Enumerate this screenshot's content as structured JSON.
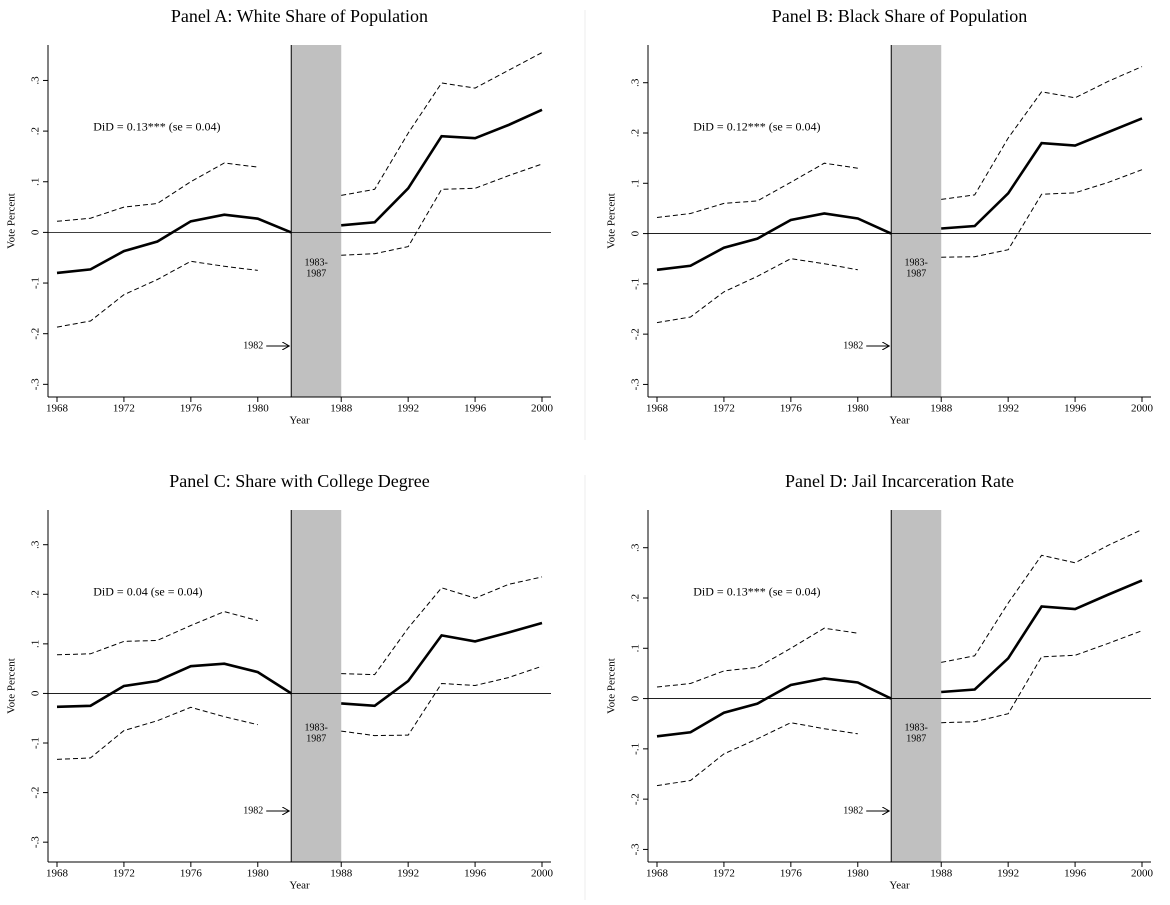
{
  "chart_data": [
    {
      "type": "line",
      "title": "Panel A: White Share of Population",
      "x_label": "Year",
      "y_label": "Vote Percent",
      "annotation": "DiD = 0.13*** (se = 0.04)",
      "band": {
        "from": 1982,
        "to": 1988,
        "label": [
          "1983-",
          "1987"
        ],
        "color": "#c0c0c0"
      },
      "arrow_label": "1982",
      "x": [
        1968,
        1970,
        1972,
        1974,
        1976,
        1978,
        1980,
        1982,
        1988,
        1990,
        1992,
        1994,
        1996,
        1998,
        2000
      ],
      "series": [
        {
          "color": "#000000",
          "style": "solid",
          "values": [
            -0.08,
            -0.073,
            -0.037,
            -0.018,
            0.022,
            0.035,
            0.027,
            0,
            0.014,
            0.02,
            0.087,
            0.19,
            0.186,
            0.212,
            0.242
          ]
        },
        {
          "color": "#000000",
          "style": "dashed",
          "values": [
            0.022,
            0.028,
            0.05,
            0.057,
            0.1,
            0.137,
            0.129,
            null,
            0.073,
            0.085,
            0.196,
            0.295,
            0.285,
            0.32,
            0.355
          ]
        },
        {
          "color": "#000000",
          "style": "dashed",
          "values": [
            -0.187,
            -0.175,
            -0.123,
            -0.093,
            -0.057,
            -0.067,
            -0.075,
            null,
            -0.045,
            -0.042,
            -0.028,
            0.085,
            0.087,
            0.112,
            0.135
          ]
        }
      ],
      "xlim": [
        1968,
        2000
      ],
      "xticks": [
        1968,
        1972,
        1976,
        1980,
        1988,
        1992,
        1996,
        2000
      ],
      "ylim": [
        -0.325,
        0.37
      ],
      "yline": 0,
      "yticks": [
        {
          "value": -0.3,
          "label": "-.3"
        },
        {
          "value": -0.2,
          "label": "-.2"
        },
        {
          "value": -0.1,
          "label": "-.1"
        },
        0,
        {
          "value": 0.1,
          "label": ".1"
        },
        {
          "value": 0.2,
          "label": ".2"
        },
        {
          "value": 0.3,
          "label": ".3"
        }
      ]
    },
    {
      "type": "line",
      "title": "Panel B: Black Share of Population",
      "x_label": "Year",
      "y_label": "Vote Percent",
      "annotation": "DiD = 0.12*** (se = 0.04)",
      "band": {
        "from": 1982,
        "to": 1988,
        "label": [
          "1983-",
          "1987"
        ],
        "color": "#c0c0c0"
      },
      "arrow_label": "1982",
      "x": [
        1968,
        1970,
        1972,
        1974,
        1976,
        1978,
        1980,
        1982,
        1988,
        1990,
        1992,
        1994,
        1996,
        1998,
        2000
      ],
      "series": [
        {
          "color": "#000000",
          "style": "solid",
          "values": [
            -0.072,
            -0.064,
            -0.028,
            -0.01,
            0.027,
            0.04,
            0.03,
            0,
            0.01,
            0.015,
            0.08,
            0.18,
            0.175,
            0.202,
            0.229
          ]
        },
        {
          "color": "#000000",
          "style": "dashed",
          "values": [
            0.032,
            0.04,
            0.06,
            0.065,
            0.102,
            0.14,
            0.13,
            null,
            0.068,
            0.077,
            0.19,
            0.282,
            0.27,
            0.303,
            0.332
          ]
        },
        {
          "color": "#000000",
          "style": "dashed",
          "values": [
            -0.177,
            -0.166,
            -0.116,
            -0.085,
            -0.05,
            -0.06,
            -0.072,
            null,
            -0.047,
            -0.046,
            -0.032,
            0.078,
            0.081,
            0.102,
            0.127
          ]
        }
      ],
      "xlim": [
        1968,
        2000
      ],
      "xticks": [
        1968,
        1972,
        1976,
        1980,
        1988,
        1992,
        1996,
        2000
      ],
      "ylim": [
        -0.325,
        0.375
      ],
      "yline": 0,
      "yticks": [
        {
          "value": -0.3,
          "label": "-.3"
        },
        {
          "value": -0.2,
          "label": "-.2"
        },
        {
          "value": -0.1,
          "label": "-.1"
        },
        0,
        {
          "value": 0.1,
          "label": ".1"
        },
        {
          "value": 0.2,
          "label": ".2"
        },
        {
          "value": 0.3,
          "label": ".3"
        }
      ]
    },
    {
      "type": "line",
      "title": "Panel C: Share with College Degree",
      "x_label": "Year",
      "y_label": "Vote Percent",
      "annotation": "DiD = 0.04 (se = 0.04)",
      "band": {
        "from": 1982,
        "to": 1988,
        "label": [
          "1983-",
          "1987"
        ],
        "color": "#c0c0c0"
      },
      "arrow_label": "1982",
      "x": [
        1968,
        1970,
        1972,
        1974,
        1976,
        1978,
        1980,
        1982,
        1988,
        1990,
        1992,
        1994,
        1996,
        1998,
        2000
      ],
      "series": [
        {
          "color": "#000000",
          "style": "solid",
          "values": [
            -0.027,
            -0.025,
            0.015,
            0.025,
            0.055,
            0.06,
            0.043,
            0,
            -0.02,
            -0.025,
            0.025,
            0.117,
            0.105,
            0.123,
            0.142
          ]
        },
        {
          "color": "#000000",
          "style": "dashed",
          "values": [
            0.078,
            0.08,
            0.105,
            0.107,
            0.137,
            0.165,
            0.147,
            null,
            0.04,
            0.038,
            0.132,
            0.213,
            0.192,
            0.22,
            0.235
          ]
        },
        {
          "color": "#000000",
          "style": "dashed",
          "values": [
            -0.133,
            -0.13,
            -0.075,
            -0.055,
            -0.028,
            -0.047,
            -0.063,
            null,
            -0.076,
            -0.085,
            -0.084,
            0.02,
            0.016,
            0.032,
            0.055
          ]
        }
      ],
      "xlim": [
        1968,
        2000
      ],
      "xticks": [
        1968,
        1972,
        1976,
        1980,
        1988,
        1992,
        1996,
        2000
      ],
      "ylim": [
        -0.34,
        0.37
      ],
      "yline": 0,
      "yticks": [
        {
          "value": -0.3,
          "label": "-.3"
        },
        {
          "value": -0.2,
          "label": "-.2"
        },
        {
          "value": -0.1,
          "label": "-.1"
        },
        0,
        {
          "value": 0.1,
          "label": ".1"
        },
        {
          "value": 0.2,
          "label": ".2"
        },
        {
          "value": 0.3,
          "label": ".3"
        }
      ]
    },
    {
      "type": "line",
      "title": "Panel D: Jail Incarceration Rate",
      "x_label": "Year",
      "y_label": "Vote Percent",
      "annotation": "DiD = 0.13*** (se = 0.04)",
      "band": {
        "from": 1982,
        "to": 1988,
        "label": [
          "1983-",
          "1987"
        ],
        "color": "#c0c0c0"
      },
      "arrow_label": "1982",
      "x": [
        1968,
        1970,
        1972,
        1974,
        1976,
        1978,
        1980,
        1982,
        1988,
        1990,
        1992,
        1994,
        1996,
        1998,
        2000
      ],
      "series": [
        {
          "color": "#000000",
          "style": "solid",
          "values": [
            -0.075,
            -0.067,
            -0.028,
            -0.01,
            0.027,
            0.04,
            0.032,
            0,
            0.013,
            0.018,
            0.08,
            0.183,
            0.178,
            0.207,
            0.235
          ]
        },
        {
          "color": "#000000",
          "style": "dashed",
          "values": [
            0.023,
            0.03,
            0.055,
            0.062,
            0.1,
            0.14,
            0.13,
            null,
            0.072,
            0.085,
            0.19,
            0.285,
            0.27,
            0.305,
            0.336
          ]
        },
        {
          "color": "#000000",
          "style": "dashed",
          "values": [
            -0.173,
            -0.163,
            -0.11,
            -0.08,
            -0.048,
            -0.06,
            -0.07,
            null,
            -0.048,
            -0.046,
            -0.03,
            0.083,
            0.086,
            0.11,
            0.135
          ]
        }
      ],
      "xlim": [
        1968,
        2000
      ],
      "xticks": [
        1968,
        1972,
        1976,
        1980,
        1988,
        1992,
        1996,
        2000
      ],
      "ylim": [
        -0.325,
        0.375
      ],
      "yline": 0,
      "yticks": [
        {
          "value": -0.3,
          "label": "-.3"
        },
        {
          "value": -0.2,
          "label": "-.2"
        },
        {
          "value": -0.1,
          "label": "-.1"
        },
        0,
        {
          "value": 0.1,
          "label": ".1"
        },
        {
          "value": 0.2,
          "label": ".2"
        },
        {
          "value": 0.3,
          "label": ".3"
        }
      ]
    }
  ]
}
